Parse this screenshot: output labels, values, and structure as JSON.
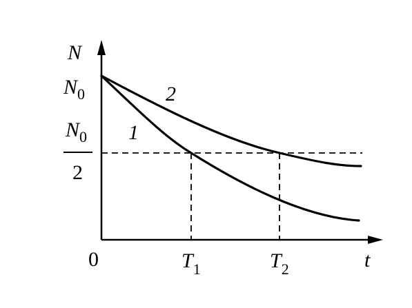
{
  "axes": {
    "y_label": "N",
    "x_label": "t",
    "origin": "0"
  },
  "y_marks": [
    {
      "symbol": "N",
      "subscript": "0"
    },
    {
      "numerator_symbol": "N",
      "numerator_subscript": "0",
      "denominator": "2"
    }
  ],
  "x_marks": [
    {
      "symbol": "T",
      "subscript": "1"
    },
    {
      "symbol": "T",
      "subscript": "2"
    }
  ],
  "curves": [
    {
      "label": "1"
    },
    {
      "label": "2"
    }
  ]
}
